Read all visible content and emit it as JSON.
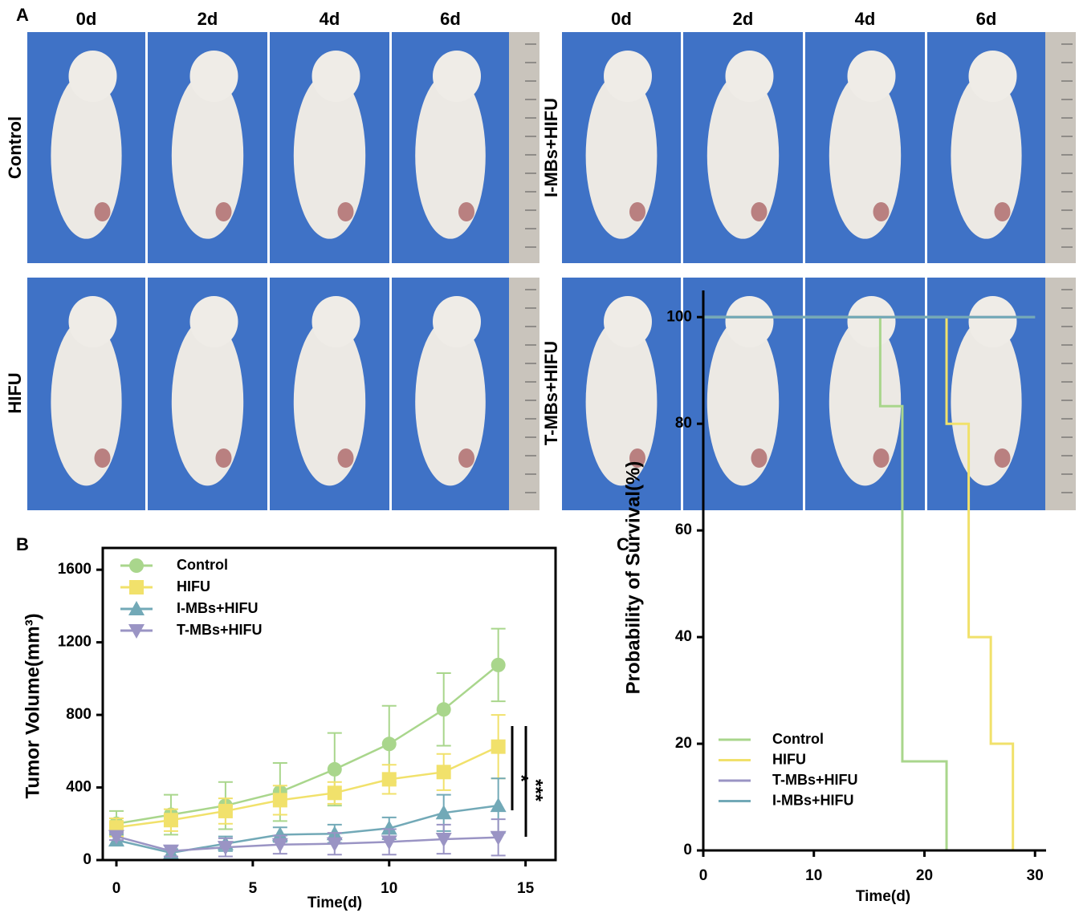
{
  "panel_a": {
    "label": "A",
    "columns": [
      "0d",
      "2d",
      "4d",
      "6d"
    ],
    "rows": [
      "Control",
      "HIFU",
      "I-MBs+HIFU",
      "T-MBs+HIFU"
    ]
  },
  "chart_data": [
    {
      "panel_label": "B",
      "type": "line",
      "x_label": "Time(d)",
      "y_label": "Tumor Volume(mm³)",
      "x": [
        0,
        2,
        4,
        6,
        8,
        10,
        12,
        14
      ],
      "xlim": [
        -0.5,
        16.1
      ],
      "xticks": [
        0,
        5,
        10,
        15
      ],
      "ylim": [
        0,
        1720
      ],
      "yticks": [
        0,
        400,
        800,
        1200,
        1600
      ],
      "annotations": [
        "*",
        "***"
      ],
      "series": [
        {
          "name": "Control",
          "color": "#a9d68c",
          "marker": "circle",
          "values": [
            200,
            250,
            300,
            375,
            500,
            640,
            830,
            1075
          ],
          "errors": [
            70,
            110,
            130,
            160,
            200,
            210,
            200,
            200
          ]
        },
        {
          "name": "HIFU",
          "color": "#f1e16b",
          "marker": "square",
          "values": [
            180,
            220,
            270,
            330,
            370,
            445,
            485,
            625
          ],
          "errors": [
            50,
            60,
            70,
            80,
            60,
            80,
            100,
            175
          ]
        },
        {
          "name": "I-MBs+HIFU",
          "color": "#72a9b7",
          "marker": "triangle-up",
          "values": [
            110,
            40,
            90,
            140,
            145,
            175,
            260,
            300
          ],
          "errors": [
            30,
            20,
            40,
            40,
            50,
            60,
            100,
            150
          ]
        },
        {
          "name": "T-MBs+HIFU",
          "color": "#9a94c4",
          "marker": "triangle-down",
          "values": [
            130,
            50,
            70,
            85,
            90,
            100,
            115,
            125
          ],
          "errors": [
            20,
            30,
            50,
            50,
            60,
            70,
            80,
            100
          ]
        }
      ]
    },
    {
      "panel_label": "C",
      "type": "step",
      "x_label": "Time(d)",
      "y_label": "Probability of Survival(%)",
      "xlim": [
        0,
        31
      ],
      "xticks": [
        0,
        10,
        20,
        30
      ],
      "ylim": [
        0,
        105
      ],
      "yticks": [
        0,
        20,
        40,
        60,
        80,
        100
      ],
      "series": [
        {
          "name": "Control",
          "color": "#a9d68c",
          "x": [
            0,
            16,
            18,
            22
          ],
          "values": [
            100,
            83.3,
            16.7,
            0
          ]
        },
        {
          "name": "HIFU",
          "color": "#f1e16b",
          "x": [
            0,
            22,
            24,
            26,
            28
          ],
          "values": [
            100,
            80,
            40,
            20,
            0
          ]
        },
        {
          "name": "T-MBs+HIFU",
          "color": "#9a94c4",
          "x": [
            0,
            30
          ],
          "values": [
            100,
            100
          ]
        },
        {
          "name": "I-MBs+HIFU",
          "color": "#72a9b7",
          "x": [
            0,
            30
          ],
          "values": [
            100,
            100
          ]
        }
      ]
    }
  ]
}
